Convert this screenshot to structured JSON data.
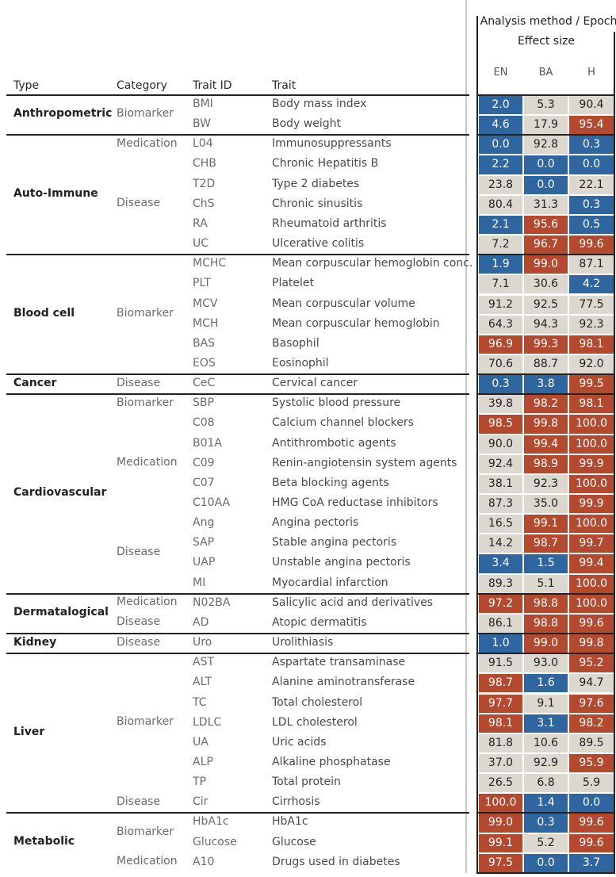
{
  "header": {
    "analysis": "Analysis method / Epoch",
    "effect": "Effect size",
    "type": "Type",
    "category": "Category",
    "trait_id": "Trait ID",
    "trait": "Trait"
  },
  "chart_data": {
    "type": "heatmap",
    "columns": [
      "EN",
      "BA",
      "H"
    ],
    "color_scale": {
      "low": "#2f66a0",
      "mid": "#dcd8d0",
      "high": "#b34a30",
      "domain": [
        0,
        100
      ]
    },
    "groups": [
      {
        "type": "Anthropometric",
        "categories": [
          {
            "name": "Biomarker",
            "rows": [
              {
                "id": "BMI",
                "trait": "Body mass index",
                "values": [
                  2.0,
                  5.3,
                  90.4
                ]
              },
              {
                "id": "BW",
                "trait": "Body weight",
                "values": [
                  4.6,
                  17.9,
                  95.4
                ]
              }
            ]
          }
        ]
      },
      {
        "type": "Auto-Immune",
        "categories": [
          {
            "name": "Medication",
            "rows": [
              {
                "id": "L04",
                "trait": "Immunosuppressants",
                "values": [
                  0.0,
                  92.8,
                  0.3
                ]
              }
            ]
          },
          {
            "name": "Disease",
            "rows": [
              {
                "id": "CHB",
                "trait": "Chronic Hepatitis B",
                "values": [
                  2.2,
                  0.0,
                  0.0
                ]
              },
              {
                "id": "T2D",
                "trait": "Type 2 diabetes",
                "values": [
                  23.8,
                  0.0,
                  22.1
                ]
              },
              {
                "id": "ChS",
                "trait": "Chronic sinusitis",
                "values": [
                  80.4,
                  31.3,
                  0.3
                ]
              },
              {
                "id": "RA",
                "trait": "Rheumatoid arthritis",
                "values": [
                  2.1,
                  95.6,
                  0.5
                ]
              },
              {
                "id": "UC",
                "trait": "Ulcerative colitis",
                "values": [
                  7.2,
                  96.7,
                  99.6
                ]
              }
            ]
          }
        ]
      },
      {
        "type": "Blood cell",
        "categories": [
          {
            "name": "Biomarker",
            "rows": [
              {
                "id": "MCHC",
                "trait": "Mean corpuscular hemoglobin conc.",
                "values": [
                  1.9,
                  99.0,
                  87.1
                ]
              },
              {
                "id": "PLT",
                "trait": "Platelet",
                "values": [
                  7.1,
                  30.6,
                  4.2
                ]
              },
              {
                "id": "MCV",
                "trait": "Mean corpuscular volume",
                "values": [
                  91.2,
                  92.5,
                  77.5
                ]
              },
              {
                "id": "MCH",
                "trait": "Mean corpuscular hemoglobin",
                "values": [
                  64.3,
                  94.3,
                  92.3
                ]
              },
              {
                "id": "BAS",
                "trait": "Basophil",
                "values": [
                  96.9,
                  99.3,
                  98.1
                ]
              },
              {
                "id": "EOS",
                "trait": "Eosinophil",
                "values": [
                  70.6,
                  88.7,
                  92.0
                ]
              }
            ]
          }
        ]
      },
      {
        "type": "Cancer",
        "categories": [
          {
            "name": "Disease",
            "rows": [
              {
                "id": "CeC",
                "trait": "Cervical cancer",
                "values": [
                  0.3,
                  3.8,
                  99.5
                ]
              }
            ]
          }
        ]
      },
      {
        "type": "Cardiovascular",
        "categories": [
          {
            "name": "Biomarker",
            "rows": [
              {
                "id": "SBP",
                "trait": "Systolic blood pressure",
                "values": [
                  39.8,
                  98.2,
                  98.1
                ]
              }
            ]
          },
          {
            "name": "Medication",
            "rows": [
              {
                "id": "C08",
                "trait": "Calcium channel blockers",
                "values": [
                  98.5,
                  99.8,
                  100.0
                ]
              },
              {
                "id": "B01A",
                "trait": "Antithrombotic agents",
                "values": [
                  90.0,
                  99.4,
                  100.0
                ]
              },
              {
                "id": "C09",
                "trait": "Renin-angiotensin system agents",
                "values": [
                  92.4,
                  98.9,
                  99.9
                ]
              },
              {
                "id": "C07",
                "trait": "Beta blocking agents",
                "values": [
                  38.1,
                  92.3,
                  100.0
                ]
              },
              {
                "id": "C10AA",
                "trait": "HMG CoA reductase inhibitors",
                "values": [
                  87.3,
                  35.0,
                  99.9
                ]
              }
            ]
          },
          {
            "name": "Disease",
            "rows": [
              {
                "id": "Ang",
                "trait": "Angina pectoris",
                "values": [
                  16.5,
                  99.1,
                  100.0
                ]
              },
              {
                "id": "SAP",
                "trait": "Stable angina pectoris",
                "values": [
                  14.2,
                  98.7,
                  99.7
                ]
              },
              {
                "id": "UAP",
                "trait": "Unstable angina pectoris",
                "values": [
                  3.4,
                  1.5,
                  99.4
                ]
              },
              {
                "id": "MI",
                "trait": "Myocardial infarction",
                "values": [
                  89.3,
                  5.1,
                  100.0
                ]
              }
            ]
          }
        ]
      },
      {
        "type": "Dermatalogical",
        "categories": [
          {
            "name": "Medication",
            "rows": [
              {
                "id": "N02BA",
                "trait": "Salicylic acid and derivatives",
                "values": [
                  97.2,
                  98.8,
                  100.0
                ]
              }
            ]
          },
          {
            "name": "Disease",
            "rows": [
              {
                "id": "AD",
                "trait": "Atopic dermatitis",
                "values": [
                  86.1,
                  98.8,
                  99.6
                ]
              }
            ]
          }
        ]
      },
      {
        "type": "Kidney",
        "categories": [
          {
            "name": "Disease",
            "rows": [
              {
                "id": "Uro",
                "trait": "Urolithiasis",
                "values": [
                  1.0,
                  99.0,
                  99.8
                ]
              }
            ]
          }
        ]
      },
      {
        "type": "Liver",
        "categories": [
          {
            "name": "Biomarker",
            "rows": [
              {
                "id": "AST",
                "trait": "Aspartate transaminase",
                "values": [
                  91.5,
                  93.0,
                  95.2
                ]
              },
              {
                "id": "ALT",
                "trait": "Alanine aminotransferase",
                "values": [
                  98.7,
                  1.6,
                  94.7
                ]
              },
              {
                "id": "TC",
                "trait": "Total cholesterol",
                "values": [
                  97.7,
                  9.1,
                  97.6
                ]
              },
              {
                "id": "LDLC",
                "trait": "LDL cholesterol",
                "values": [
                  98.1,
                  3.1,
                  98.2
                ]
              },
              {
                "id": "UA",
                "trait": "Uric acids",
                "values": [
                  81.8,
                  10.6,
                  89.5
                ]
              },
              {
                "id": "ALP",
                "trait": "Alkaline phosphatase",
                "values": [
                  37.0,
                  92.9,
                  95.9
                ]
              },
              {
                "id": "TP",
                "trait": "Total protein",
                "values": [
                  26.5,
                  6.8,
                  5.9
                ]
              }
            ]
          },
          {
            "name": "Disease",
            "rows": [
              {
                "id": "Cir",
                "trait": "Cirrhosis",
                "values": [
                  100.0,
                  1.4,
                  0.0
                ]
              }
            ]
          }
        ]
      },
      {
        "type": "Metabolic",
        "categories": [
          {
            "name": "Biomarker",
            "rows": [
              {
                "id": "HbA1c",
                "trait": "HbA1c",
                "values": [
                  99.0,
                  0.3,
                  99.6
                ]
              },
              {
                "id": "Glucose",
                "trait": "Glucose",
                "values": [
                  99.1,
                  5.2,
                  99.6
                ]
              }
            ]
          },
          {
            "name": "Medication",
            "rows": [
              {
                "id": "A10",
                "trait": "Drugs used in diabetes",
                "values": [
                  97.5,
                  0.0,
                  3.7
                ]
              }
            ]
          }
        ]
      }
    ]
  }
}
